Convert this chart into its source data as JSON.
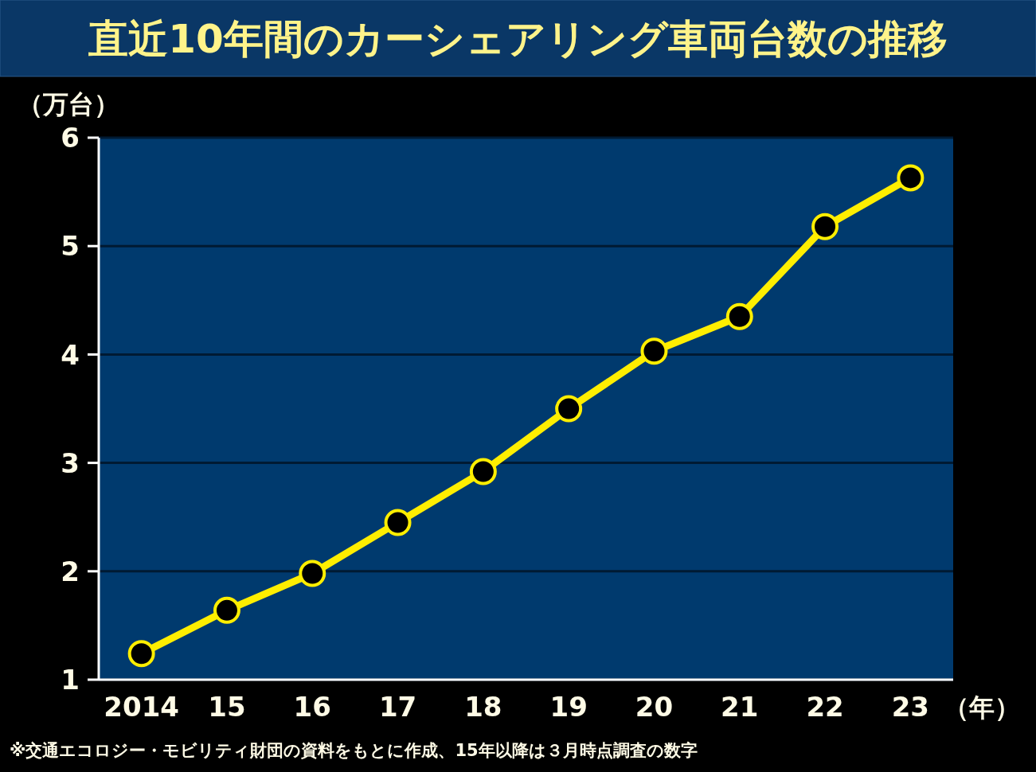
{
  "chart_data": {
    "type": "line",
    "title": "直近10年間のカーシェアリング車両台数の推移",
    "ylabel": "（万台）",
    "xlabel": "（年）",
    "categories": [
      "2014",
      "15",
      "16",
      "17",
      "18",
      "19",
      "20",
      "21",
      "22",
      "23"
    ],
    "series": [
      {
        "color": "#ffee00",
        "values": [
          1.24,
          1.64,
          1.98,
          2.45,
          2.92,
          3.5,
          4.03,
          4.35,
          5.18,
          5.63
        ]
      }
    ],
    "ylim": [
      1,
      6
    ],
    "yticks": [
      1,
      2,
      3,
      4,
      5,
      6
    ],
    "grid": "y",
    "marker": "circle",
    "line_style": "solid",
    "annotations": [
      "※交通エコロジー・モビリティ財団の資料をもとに作成、15年以降は３月時点調査の数字"
    ]
  }
}
